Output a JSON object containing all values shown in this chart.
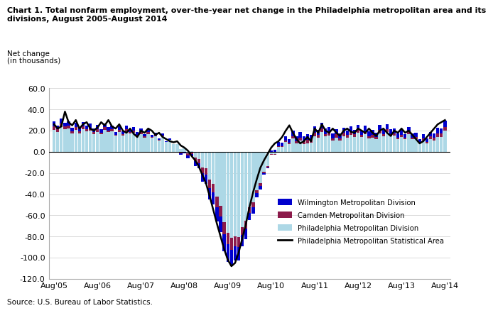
{
  "title_line1": "Chart 1. Total nonfarm employment, over-the-year net change in the Philadelphia metropolitan area and its",
  "title_line2": "divisions, August 2005-August 2014",
  "ylabel_line1": "Net change",
  "ylabel_line2": "(in thousands)",
  "source": "Source: U.S. Bureau of Labor Statistics.",
  "ylim": [
    -120.0,
    60.0
  ],
  "yticks": [
    -120.0,
    -100.0,
    -80.0,
    -60.0,
    -40.0,
    -20.0,
    0.0,
    20.0,
    40.0,
    60.0
  ],
  "xtick_labels": [
    "Aug'05",
    "Aug'06",
    "Aug'07",
    "Aug'08",
    "Aug'09",
    "Aug'10",
    "Aug'11",
    "Aug'12",
    "Aug'13",
    "Aug'14"
  ],
  "xtick_positions": [
    0,
    12,
    24,
    36,
    48,
    60,
    72,
    84,
    96,
    108
  ],
  "n_months": 109,
  "colors": {
    "wilmington": "#0000CD",
    "camden": "#8B1A4A",
    "philadelphia_div": "#ADD8E6",
    "msa_line": "#000000",
    "grid": "#CCCCCC",
    "zero_line": "#000000"
  },
  "legend_entries": [
    "Wilmington Metropolitan Division",
    "Camden Metropolitan Division",
    "Philadelphia Metropolitan Division",
    "Philadelphia Metropolitan Statistical Area"
  ]
}
